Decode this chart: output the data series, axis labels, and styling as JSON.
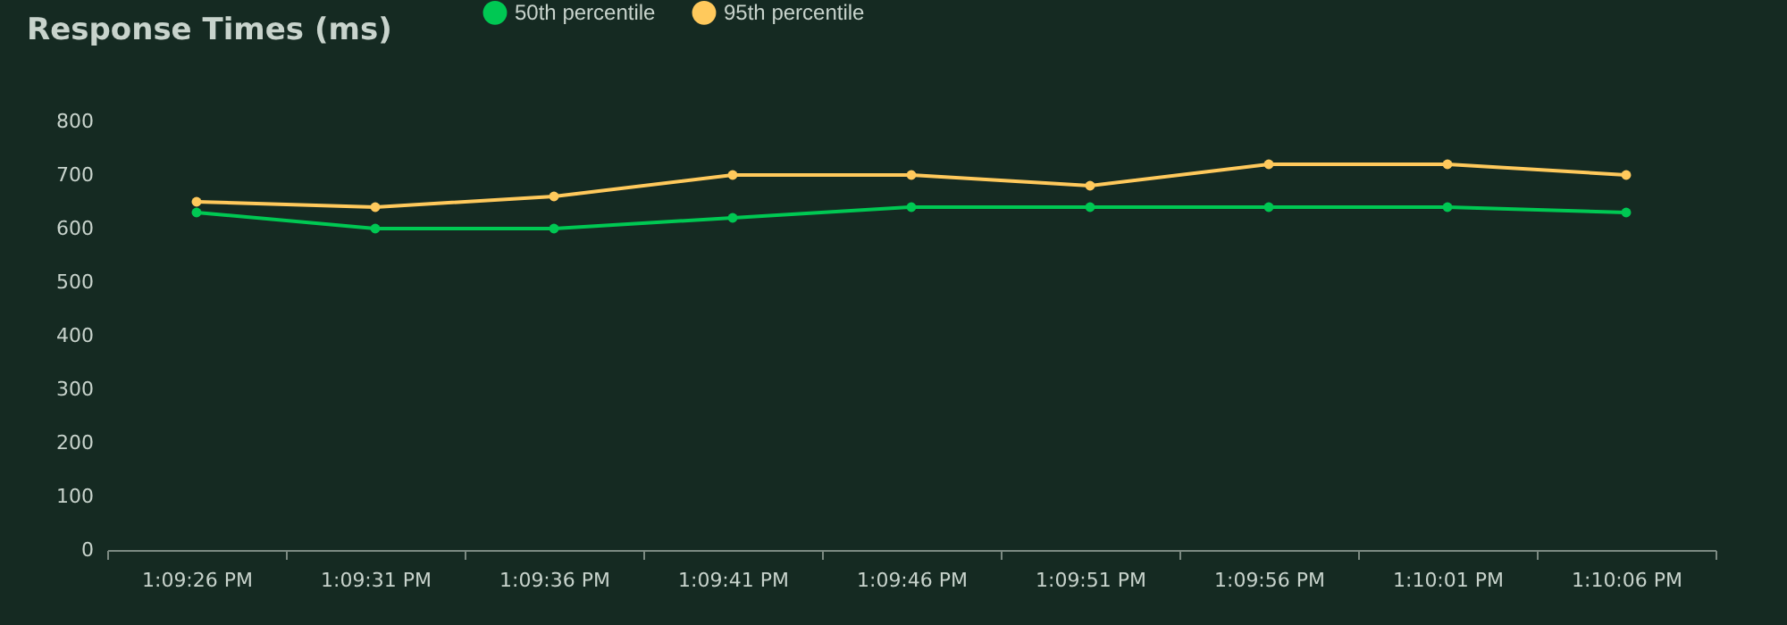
{
  "chart_data": {
    "type": "line",
    "title": "Response Times (ms)",
    "categories": [
      "1:09:26 PM",
      "1:09:31 PM",
      "1:09:36 PM",
      "1:09:41 PM",
      "1:09:46 PM",
      "1:09:51 PM",
      "1:09:56 PM",
      "1:10:01 PM",
      "1:10:06 PM"
    ],
    "series": [
      {
        "name": "50th percentile",
        "color": "#00c853",
        "values": [
          630,
          600,
          600,
          620,
          640,
          640,
          640,
          640,
          630
        ]
      },
      {
        "name": "95th percentile",
        "color": "#ffc95c",
        "values": [
          650,
          640,
          660,
          700,
          700,
          680,
          720,
          720,
          700
        ]
      }
    ],
    "ylim": [
      0,
      800
    ],
    "yticks": [
      0,
      100,
      200,
      300,
      400,
      500,
      600,
      700,
      800
    ],
    "grid": false,
    "legend": "top",
    "marker": "circle",
    "line_style": "solid"
  }
}
